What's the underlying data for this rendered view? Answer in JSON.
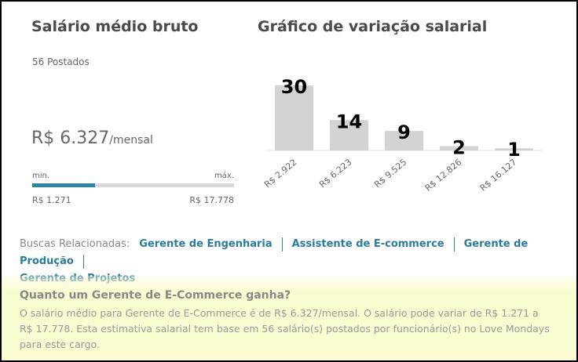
{
  "left": {
    "title": "Salário médio bruto",
    "posted": "56 Postados",
    "salary": "R$ 6.327",
    "per": "/mensal",
    "min_label": "min.",
    "max_label": "máx.",
    "min_value": "R$ 1.271",
    "max_value": "R$ 17.778",
    "range_fill_fraction": 0.31
  },
  "chart_title": "Gráfico de variação salarial",
  "chart_data": {
    "type": "bar",
    "categories": [
      "R$ 2.922",
      "R$ 6.223",
      "R$ 9.525",
      "R$ 12.826",
      "R$ 16.127"
    ],
    "values": [
      30,
      14,
      9,
      2,
      1
    ],
    "ylim": [
      0,
      30
    ],
    "grid": false,
    "bar_color": "#d3d3d3"
  },
  "related": {
    "label": "Buscas Relacionadas:",
    "links": [
      "Gerente de Engenharia",
      "Assistente de E-commerce",
      "Gerente de Produção",
      "Gerente de Projetos"
    ]
  },
  "faq": {
    "question": "Quanto um Gerente de E-Commerce ganha?",
    "answer": "O salário médio para Gerente de E-Commerce é de R$ 6.327/mensal. O salário pode variar de R$ 1.271 a R$ 17.778. Esta estimativa salarial tem base em 56 salário(s) postados por funcionário(s) no Love Mondays para este cargo."
  },
  "colors": {
    "accent": "#2a86a8",
    "link": "#2a7c9c",
    "highlight": "#fbfbd0"
  }
}
